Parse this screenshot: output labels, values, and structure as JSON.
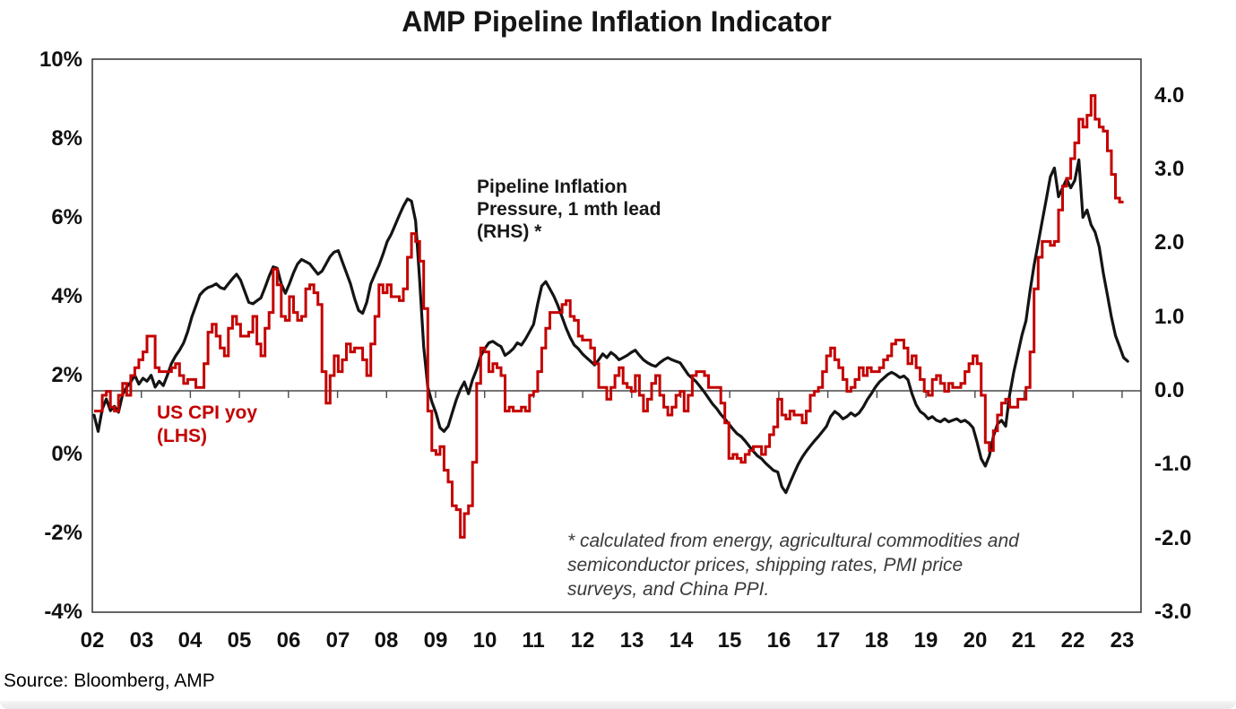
{
  "page": {
    "title": "AMP Pipeline Inflation Indicator",
    "source": "Source: Bloomberg, AMP"
  },
  "chart_data": {
    "type": "line",
    "title": "AMP Pipeline Inflation Indicator",
    "x_axis": {
      "labels": [
        "02",
        "03",
        "04",
        "05",
        "06",
        "07",
        "08",
        "09",
        "10",
        "11",
        "12",
        "13",
        "14",
        "15",
        "16",
        "17",
        "18",
        "19",
        "20",
        "21",
        "22",
        "23"
      ],
      "start": "2002-01",
      "frequency": "monthly"
    },
    "left_axis": {
      "unit": "%",
      "tick_labels": [
        "10%",
        "8%",
        "6%",
        "4%",
        "2%",
        "0%",
        "-2%",
        "-4%"
      ],
      "tick_values": [
        10,
        8,
        6,
        4,
        2,
        0,
        -2,
        -4
      ],
      "range": [
        -4,
        10
      ]
    },
    "right_axis": {
      "tick_labels": [
        "4.0",
        "3.0",
        "2.0",
        "1.0",
        "0.0",
        "-1.0",
        "-2.0",
        "-3.0"
      ],
      "tick_values": [
        4,
        3,
        2,
        1,
        0,
        -1,
        -2,
        -3
      ],
      "range": [
        -3,
        4.5
      ]
    },
    "annotations": {
      "pipeline_label": "Pipeline Inflation\nPressure, 1 mth lead\n(RHS) *",
      "cpi_label": "US CPI yoy\n(LHS)",
      "footnote": "* calculated from energy, agricultural commodities and\nsemiconductor prices, shipping rates, PMI price\nsurveys, and China PPI."
    },
    "grid": "zero-line only",
    "legend_position": "in-plot annotations",
    "series": [
      {
        "name": "US CPI yoy (LHS)",
        "axis": "left",
        "color": "#c40000",
        "style": "step",
        "start": "2002-01",
        "values": [
          1.1,
          1.1,
          1.5,
          1.6,
          1.2,
          1.1,
          1.5,
          1.8,
          1.5,
          2.0,
          2.2,
          2.4,
          2.6,
          3.0,
          3.0,
          2.2,
          2.1,
          2.1,
          2.1,
          2.2,
          2.3,
          2.0,
          1.8,
          1.9,
          1.9,
          1.7,
          1.7,
          2.3,
          3.1,
          3.3,
          3.0,
          2.7,
          2.5,
          3.2,
          3.5,
          3.3,
          3.0,
          3.0,
          3.1,
          3.5,
          2.8,
          2.5,
          3.2,
          3.6,
          4.7,
          4.3,
          3.5,
          3.4,
          4.0,
          3.6,
          3.4,
          3.5,
          4.2,
          4.3,
          4.1,
          3.8,
          2.1,
          1.3,
          2.0,
          2.5,
          2.1,
          2.4,
          2.8,
          2.6,
          2.7,
          2.7,
          2.4,
          2.0,
          2.8,
          3.5,
          4.3,
          4.1,
          4.3,
          4.0,
          4.0,
          3.9,
          4.2,
          5.0,
          5.6,
          5.4,
          4.9,
          3.7,
          1.1,
          0.1,
          0.0,
          0.2,
          -0.4,
          -0.7,
          -1.3,
          -1.4,
          -2.1,
          -1.5,
          -1.3,
          -0.2,
          1.8,
          2.7,
          2.6,
          2.1,
          2.3,
          2.2,
          2.0,
          1.1,
          1.2,
          1.1,
          1.1,
          1.2,
          1.1,
          1.5,
          1.6,
          2.1,
          2.7,
          3.2,
          3.6,
          3.6,
          3.6,
          3.8,
          3.9,
          3.5,
          3.4,
          3.0,
          2.9,
          2.9,
          2.7,
          2.3,
          1.7,
          1.7,
          1.4,
          1.7,
          2.0,
          2.2,
          1.8,
          1.7,
          1.6,
          2.0,
          1.5,
          1.1,
          1.4,
          1.8,
          2.0,
          1.5,
          1.2,
          1.0,
          1.2,
          1.5,
          1.6,
          1.1,
          1.5,
          2.0,
          2.1,
          2.1,
          2.0,
          1.7,
          1.7,
          1.7,
          1.3,
          0.8,
          -0.1,
          0.0,
          -0.1,
          -0.2,
          0.0,
          0.1,
          0.2,
          0.2,
          0.0,
          0.2,
          0.5,
          0.7,
          1.4,
          1.0,
          0.9,
          1.1,
          1.0,
          1.0,
          0.8,
          1.1,
          1.5,
          1.6,
          1.7,
          2.1,
          2.5,
          2.7,
          2.4,
          2.2,
          1.9,
          1.6,
          1.7,
          1.9,
          2.2,
          2.0,
          2.2,
          2.1,
          2.1,
          2.2,
          2.4,
          2.5,
          2.8,
          2.9,
          2.9,
          2.7,
          2.3,
          2.5,
          2.2,
          1.9,
          1.6,
          1.5,
          1.9,
          2.0,
          1.8,
          1.6,
          1.8,
          1.7,
          1.7,
          1.8,
          2.1,
          2.3,
          2.5,
          2.3,
          1.5,
          0.3,
          0.1,
          0.6,
          1.0,
          1.3,
          1.4,
          1.2,
          1.2,
          1.4,
          1.4,
          1.7,
          2.6,
          4.2,
          5.0,
          5.4,
          5.4,
          5.3,
          5.4,
          6.2,
          6.8,
          7.0,
          7.5,
          7.9,
          8.5,
          8.3,
          8.6,
          9.1,
          8.5,
          8.3,
          8.2,
          7.7,
          7.1,
          6.5,
          6.4
        ]
      },
      {
        "name": "Pipeline Inflation Pressure, 1 mth lead (RHS) *",
        "axis": "right",
        "color": "#141414",
        "style": "line",
        "start": "2002-01",
        "values": [
          -0.33,
          -0.55,
          -0.25,
          -0.11,
          -0.27,
          -0.21,
          -0.29,
          -0.05,
          0.05,
          0.12,
          0.21,
          0.09,
          0.17,
          0.13,
          0.21,
          0.05,
          0.13,
          0.07,
          0.21,
          0.37,
          0.47,
          0.55,
          0.65,
          0.8,
          1.0,
          1.15,
          1.3,
          1.36,
          1.4,
          1.42,
          1.45,
          1.4,
          1.38,
          1.45,
          1.52,
          1.58,
          1.5,
          1.35,
          1.2,
          1.18,
          1.22,
          1.26,
          1.4,
          1.55,
          1.68,
          1.66,
          1.45,
          1.32,
          1.45,
          1.6,
          1.72,
          1.78,
          1.75,
          1.72,
          1.65,
          1.58,
          1.62,
          1.72,
          1.82,
          1.88,
          1.9,
          1.75,
          1.6,
          1.45,
          1.25,
          1.09,
          1.05,
          1.2,
          1.45,
          1.58,
          1.7,
          1.85,
          2.02,
          2.12,
          2.25,
          2.38,
          2.5,
          2.6,
          2.57,
          2.3,
          1.5,
          0.6,
          0.05,
          -0.15,
          -0.3,
          -0.5,
          -0.55,
          -0.48,
          -0.3,
          -0.12,
          0.02,
          0.12,
          -0.04,
          0.15,
          0.29,
          0.47,
          0.57,
          0.65,
          0.67,
          0.63,
          0.6,
          0.48,
          0.52,
          0.57,
          0.65,
          0.62,
          0.7,
          0.8,
          0.9,
          1.18,
          1.42,
          1.48,
          1.38,
          1.28,
          1.15,
          1.0,
          0.85,
          0.72,
          0.62,
          0.57,
          0.5,
          0.45,
          0.4,
          0.35,
          0.42,
          0.5,
          0.45,
          0.52,
          0.48,
          0.42,
          0.45,
          0.48,
          0.52,
          0.55,
          0.48,
          0.42,
          0.38,
          0.35,
          0.33,
          0.38,
          0.42,
          0.45,
          0.42,
          0.4,
          0.38,
          0.3,
          0.22,
          0.17,
          0.12,
          0.05,
          -0.02,
          -0.1,
          -0.18,
          -0.24,
          -0.32,
          -0.38,
          -0.45,
          -0.52,
          -0.58,
          -0.62,
          -0.68,
          -0.75,
          -0.82,
          -0.88,
          -0.92,
          -0.98,
          -1.03,
          -1.08,
          -1.1,
          -1.3,
          -1.38,
          -1.25,
          -1.12,
          -1.0,
          -0.9,
          -0.82,
          -0.75,
          -0.68,
          -0.62,
          -0.55,
          -0.48,
          -0.35,
          -0.28,
          -0.32,
          -0.38,
          -0.35,
          -0.3,
          -0.34,
          -0.3,
          -0.22,
          -0.12,
          -0.04,
          0.05,
          0.12,
          0.17,
          0.22,
          0.25,
          0.22,
          0.18,
          0.2,
          0.15,
          -0.04,
          -0.19,
          -0.28,
          -0.32,
          -0.38,
          -0.35,
          -0.4,
          -0.42,
          -0.38,
          -0.42,
          -0.4,
          -0.38,
          -0.42,
          -0.4,
          -0.44,
          -0.5,
          -0.7,
          -0.92,
          -1.02,
          -0.88,
          -0.62,
          -0.45,
          -0.4,
          -0.48,
          -0.05,
          0.25,
          0.5,
          0.75,
          0.95,
          1.35,
          1.7,
          2.0,
          2.3,
          2.6,
          2.9,
          3.02,
          2.63,
          2.75,
          2.87,
          2.75,
          2.85,
          3.13,
          2.35,
          2.45,
          2.25,
          2.15,
          1.95,
          1.6,
          1.3,
          1.0,
          0.75,
          0.6,
          0.45,
          0.4
        ]
      }
    ],
    "source": "Source: Bloomberg, AMP"
  }
}
